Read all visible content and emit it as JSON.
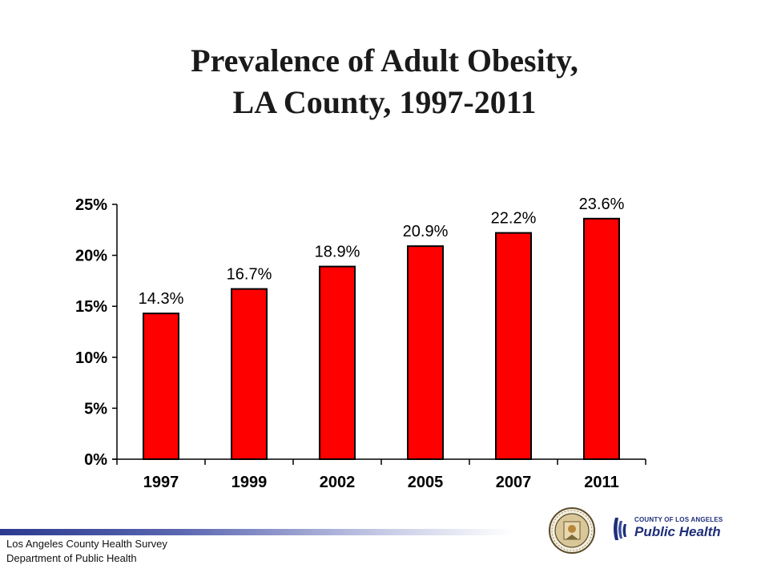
{
  "title": {
    "line1": "Prevalence of Adult Obesity,",
    "line2": "LA County, 1997-2011"
  },
  "chart_data": {
    "type": "bar",
    "title": "Prevalence of Adult Obesity, LA County, 1997-2011",
    "categories": [
      "1997",
      "1999",
      "2002",
      "2005",
      "2007",
      "2011"
    ],
    "values": [
      14.3,
      16.7,
      18.9,
      20.9,
      22.2,
      23.6
    ],
    "data_labels": [
      "14.3%",
      "16.7%",
      "18.9%",
      "20.9%",
      "22.2%",
      "23.6%"
    ],
    "y_ticks": [
      0,
      5,
      10,
      15,
      20,
      25
    ],
    "y_tick_labels": [
      "0%",
      "5%",
      "10%",
      "15%",
      "20%",
      "25%"
    ],
    "ylim": [
      0,
      25
    ],
    "xlabel": "",
    "ylabel": "",
    "grid": false,
    "legend": "none",
    "bar_color": "#ff0000",
    "bar_edge_color": "#000000"
  },
  "footer": {
    "line1": "Los Angeles County Health Survey",
    "line2": "Department of Public Health",
    "accent_color": "#2b3a8f"
  },
  "logos": {
    "seal_icon": "la-county-seal-icon",
    "dph_line1": "COUNTY OF LOS ANGELES",
    "dph_line2": "Public Health"
  }
}
